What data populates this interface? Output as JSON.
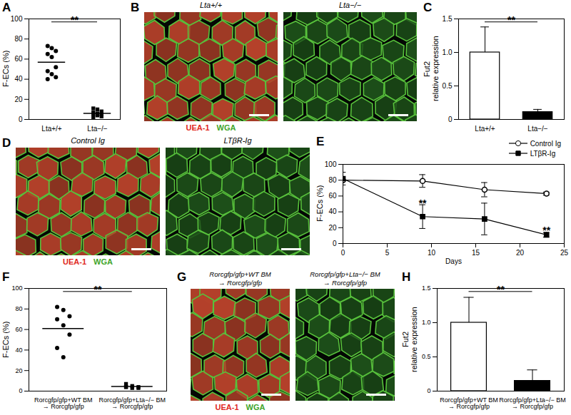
{
  "chart_data": [
    {
      "panel": "A",
      "type": "scatter",
      "y_label": "F-ECs (%)",
      "categories": [
        "Lta+/+",
        "Lta−/−"
      ],
      "values": [
        [
          73,
          71,
          68,
          65,
          62,
          52,
          48,
          45,
          42,
          40
        ],
        [
          11,
          10,
          8,
          7,
          6,
          5,
          5,
          4,
          3,
          2
        ]
      ],
      "means": [
        57,
        6
      ],
      "marker": [
        "circle",
        "square"
      ],
      "color": "#000000",
      "ylim": [
        0,
        100
      ],
      "yticks": [
        0,
        20,
        40,
        60,
        80,
        100
      ],
      "annotation": "**"
    },
    {
      "panel": "C",
      "type": "bar",
      "y_label": "Fut2\nrelative expression",
      "categories": [
        "Lta+/+",
        "Lta−/−"
      ],
      "values": [
        1.0,
        0.11
      ],
      "errors": [
        0.38,
        0.04
      ],
      "colors": [
        "#ffffff",
        "#000000"
      ],
      "ylim": [
        0,
        1.5
      ],
      "yticks": [
        0,
        0.5,
        {
          "value": 1,
          "label": "1.0"
        },
        1.5
      ],
      "annotation": "**"
    },
    {
      "panel": "E",
      "type": "line",
      "x_label": "Days",
      "y_label": "F-ECs (%)",
      "x": [
        0,
        9,
        16,
        23
      ],
      "series": [
        {
          "name": "Control Ig",
          "color": "#000000",
          "marker": "circle-open",
          "values": [
            80,
            79,
            68,
            63
          ],
          "errors": [
            0,
            8,
            9,
            2
          ]
        },
        {
          "name": "LTβR-Ig",
          "color": "#000000",
          "marker": "square",
          "values": [
            82,
            34,
            31,
            11
          ],
          "errors": [
            8,
            15,
            20,
            3
          ]
        }
      ],
      "xlim": [
        0,
        25
      ],
      "xticks": [
        0,
        5,
        10,
        15,
        20,
        25
      ],
      "ylim": [
        0,
        100
      ],
      "yticks": [
        0,
        20,
        40,
        60,
        80,
        100
      ],
      "legend": "top-right",
      "annotations": [
        {
          "text": "**",
          "x": 9,
          "y": 50
        },
        {
          "text": "**",
          "x": 23,
          "y": 16
        }
      ]
    },
    {
      "panel": "F",
      "type": "scatter",
      "y_label": "F-ECs (%)",
      "categories": [
        "Rorcgfp/gfp+WT BM\n→ Rorcgfp/gfp",
        "Rorcgfp/gfp+Lta−/− BM\n→ Rorcgfp/gfp"
      ],
      "values": [
        [
          82,
          79,
          73,
          70,
          64,
          55,
          42,
          33
        ],
        [
          7,
          5,
          4,
          4,
          3,
          3,
          4
        ]
      ],
      "means": [
        61,
        4.5
      ],
      "marker": [
        "circle",
        "square"
      ],
      "color": "#000000",
      "ylim": [
        0,
        100
      ],
      "yticks": [
        0,
        20,
        40,
        60,
        80,
        100
      ],
      "annotation": "**"
    },
    {
      "panel": "H",
      "type": "bar",
      "y_label": "Fut2\nrelative expression",
      "categories": [
        "Rorcgfp/gfp+WT BM\n→ Rorcgfp/gfp",
        "Rorcgfp/gfp+Lta−/− BM\n→ Rorcgfp/gfp"
      ],
      "values": [
        1.0,
        0.15
      ],
      "errors": [
        0.37,
        0.16
      ],
      "colors": [
        "#ffffff",
        "#000000"
      ],
      "ylim": [
        0,
        1.5
      ],
      "yticks": [
        0,
        0.5,
        {
          "value": 1,
          "label": "1.0"
        },
        1.5
      ],
      "annotation": "**"
    }
  ],
  "image_panels": [
    {
      "panel": "B",
      "images": [
        {
          "label": "Lta+/+",
          "color": "#b5412a"
        },
        {
          "label": "Lta−/−",
          "color": "#1d4f19"
        }
      ],
      "legend": [
        {
          "text": "UEA-1",
          "color": "#e0281e"
        },
        {
          "text": "WGA",
          "color": "#3fa52a"
        }
      ]
    },
    {
      "panel": "D",
      "images": [
        {
          "label": "Control Ig",
          "color": "#b5412a"
        },
        {
          "label": "LTβR-Ig",
          "color": "#1d4f19"
        }
      ],
      "legend": [
        {
          "text": "UEA-1",
          "color": "#e0281e"
        },
        {
          "text": "WGA",
          "color": "#3fa52a"
        }
      ]
    },
    {
      "panel": "G",
      "images": [
        {
          "label": "Rorcgfp/gfp+WT BM\n→ Rorcgfp/gfp",
          "color": "#b5412a"
        },
        {
          "label": "Rorcgfp/gfp+Lta−/− BM\n→ Rorcgfp/gfp",
          "color": "#1d4f19"
        }
      ],
      "legend": [
        {
          "text": "UEA-1",
          "color": "#e0281e"
        },
        {
          "text": "WGA",
          "color": "#3fa52a"
        }
      ]
    }
  ]
}
